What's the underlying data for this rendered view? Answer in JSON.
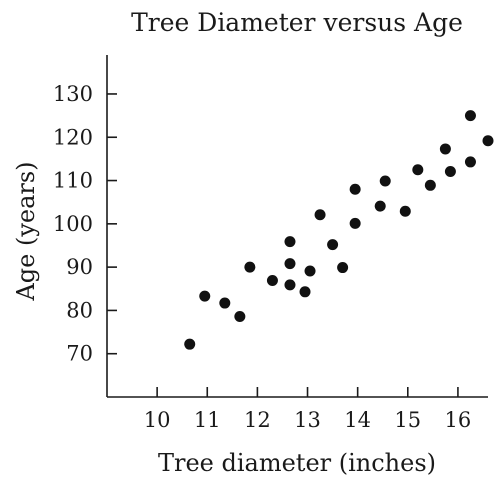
{
  "chart_data": {
    "type": "scatter",
    "title": "Tree Diameter versus Age",
    "xlabel": "Tree diameter (inches)",
    "ylabel": "Age (years)",
    "xlim": [
      9,
      16.6
    ],
    "ylim": [
      60,
      139
    ],
    "x_ticks": [
      10,
      11,
      12,
      13,
      14,
      15,
      16
    ],
    "y_ticks": [
      70,
      80,
      90,
      100,
      110,
      120,
      130
    ],
    "grid": false,
    "legend": "none",
    "point_color": "#111111",
    "x": [
      10.65,
      10.95,
      11.35,
      11.65,
      11.85,
      12.3,
      12.65,
      12.65,
      12.65,
      12.95,
      13.05,
      13.25,
      13.5,
      13.7,
      13.95,
      13.95,
      14.45,
      14.55,
      14.95,
      15.2,
      15.45,
      15.75,
      15.85,
      16.25,
      16.25,
      16.6
    ],
    "y": [
      72.2,
      83.3,
      81.7,
      78.6,
      90.0,
      86.9,
      95.9,
      90.8,
      85.9,
      84.3,
      89.1,
      102.1,
      95.2,
      89.9,
      108.0,
      100.1,
      104.1,
      109.9,
      102.9,
      112.5,
      108.9,
      117.3,
      112.1,
      125.0,
      114.3,
      119.2
    ]
  }
}
